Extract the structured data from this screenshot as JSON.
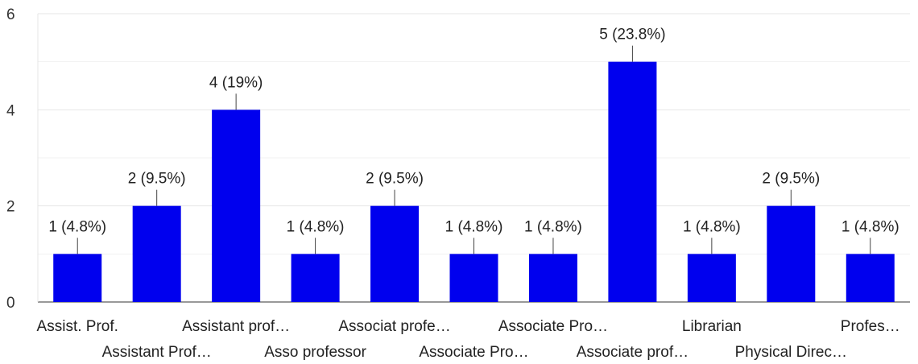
{
  "chart_data": {
    "type": "bar",
    "categories": [
      "Assist. Prof.",
      "Assistant Prof…",
      "Assistant prof…",
      "Asso professor",
      "Associat profe…",
      "Associate Pro…",
      "Associate Pro…",
      "Associate prof…",
      "Librarian",
      "Physical Direc…",
      "Profes…"
    ],
    "values": [
      1,
      2,
      4,
      1,
      2,
      1,
      1,
      5,
      1,
      2,
      1
    ],
    "data_labels": [
      "1 (4.8%)",
      "2 (9.5%)",
      "4 (19%)",
      "1 (4.8%)",
      "2 (9.5%)",
      "1 (4.8%)",
      "1 (4.8%)",
      "5 (23.8%)",
      "1 (4.8%)",
      "2 (9.5%)",
      "1 (4.8%)"
    ],
    "y_ticks": [
      "0",
      "2",
      "4",
      "6"
    ],
    "ylim": [
      0,
      6
    ],
    "title": "",
    "xlabel": "",
    "ylabel": "",
    "grid": true,
    "legend": "none",
    "colors": {
      "bar": "#0000ee",
      "grid": "#e6e6e6",
      "axis": "#333333"
    }
  }
}
